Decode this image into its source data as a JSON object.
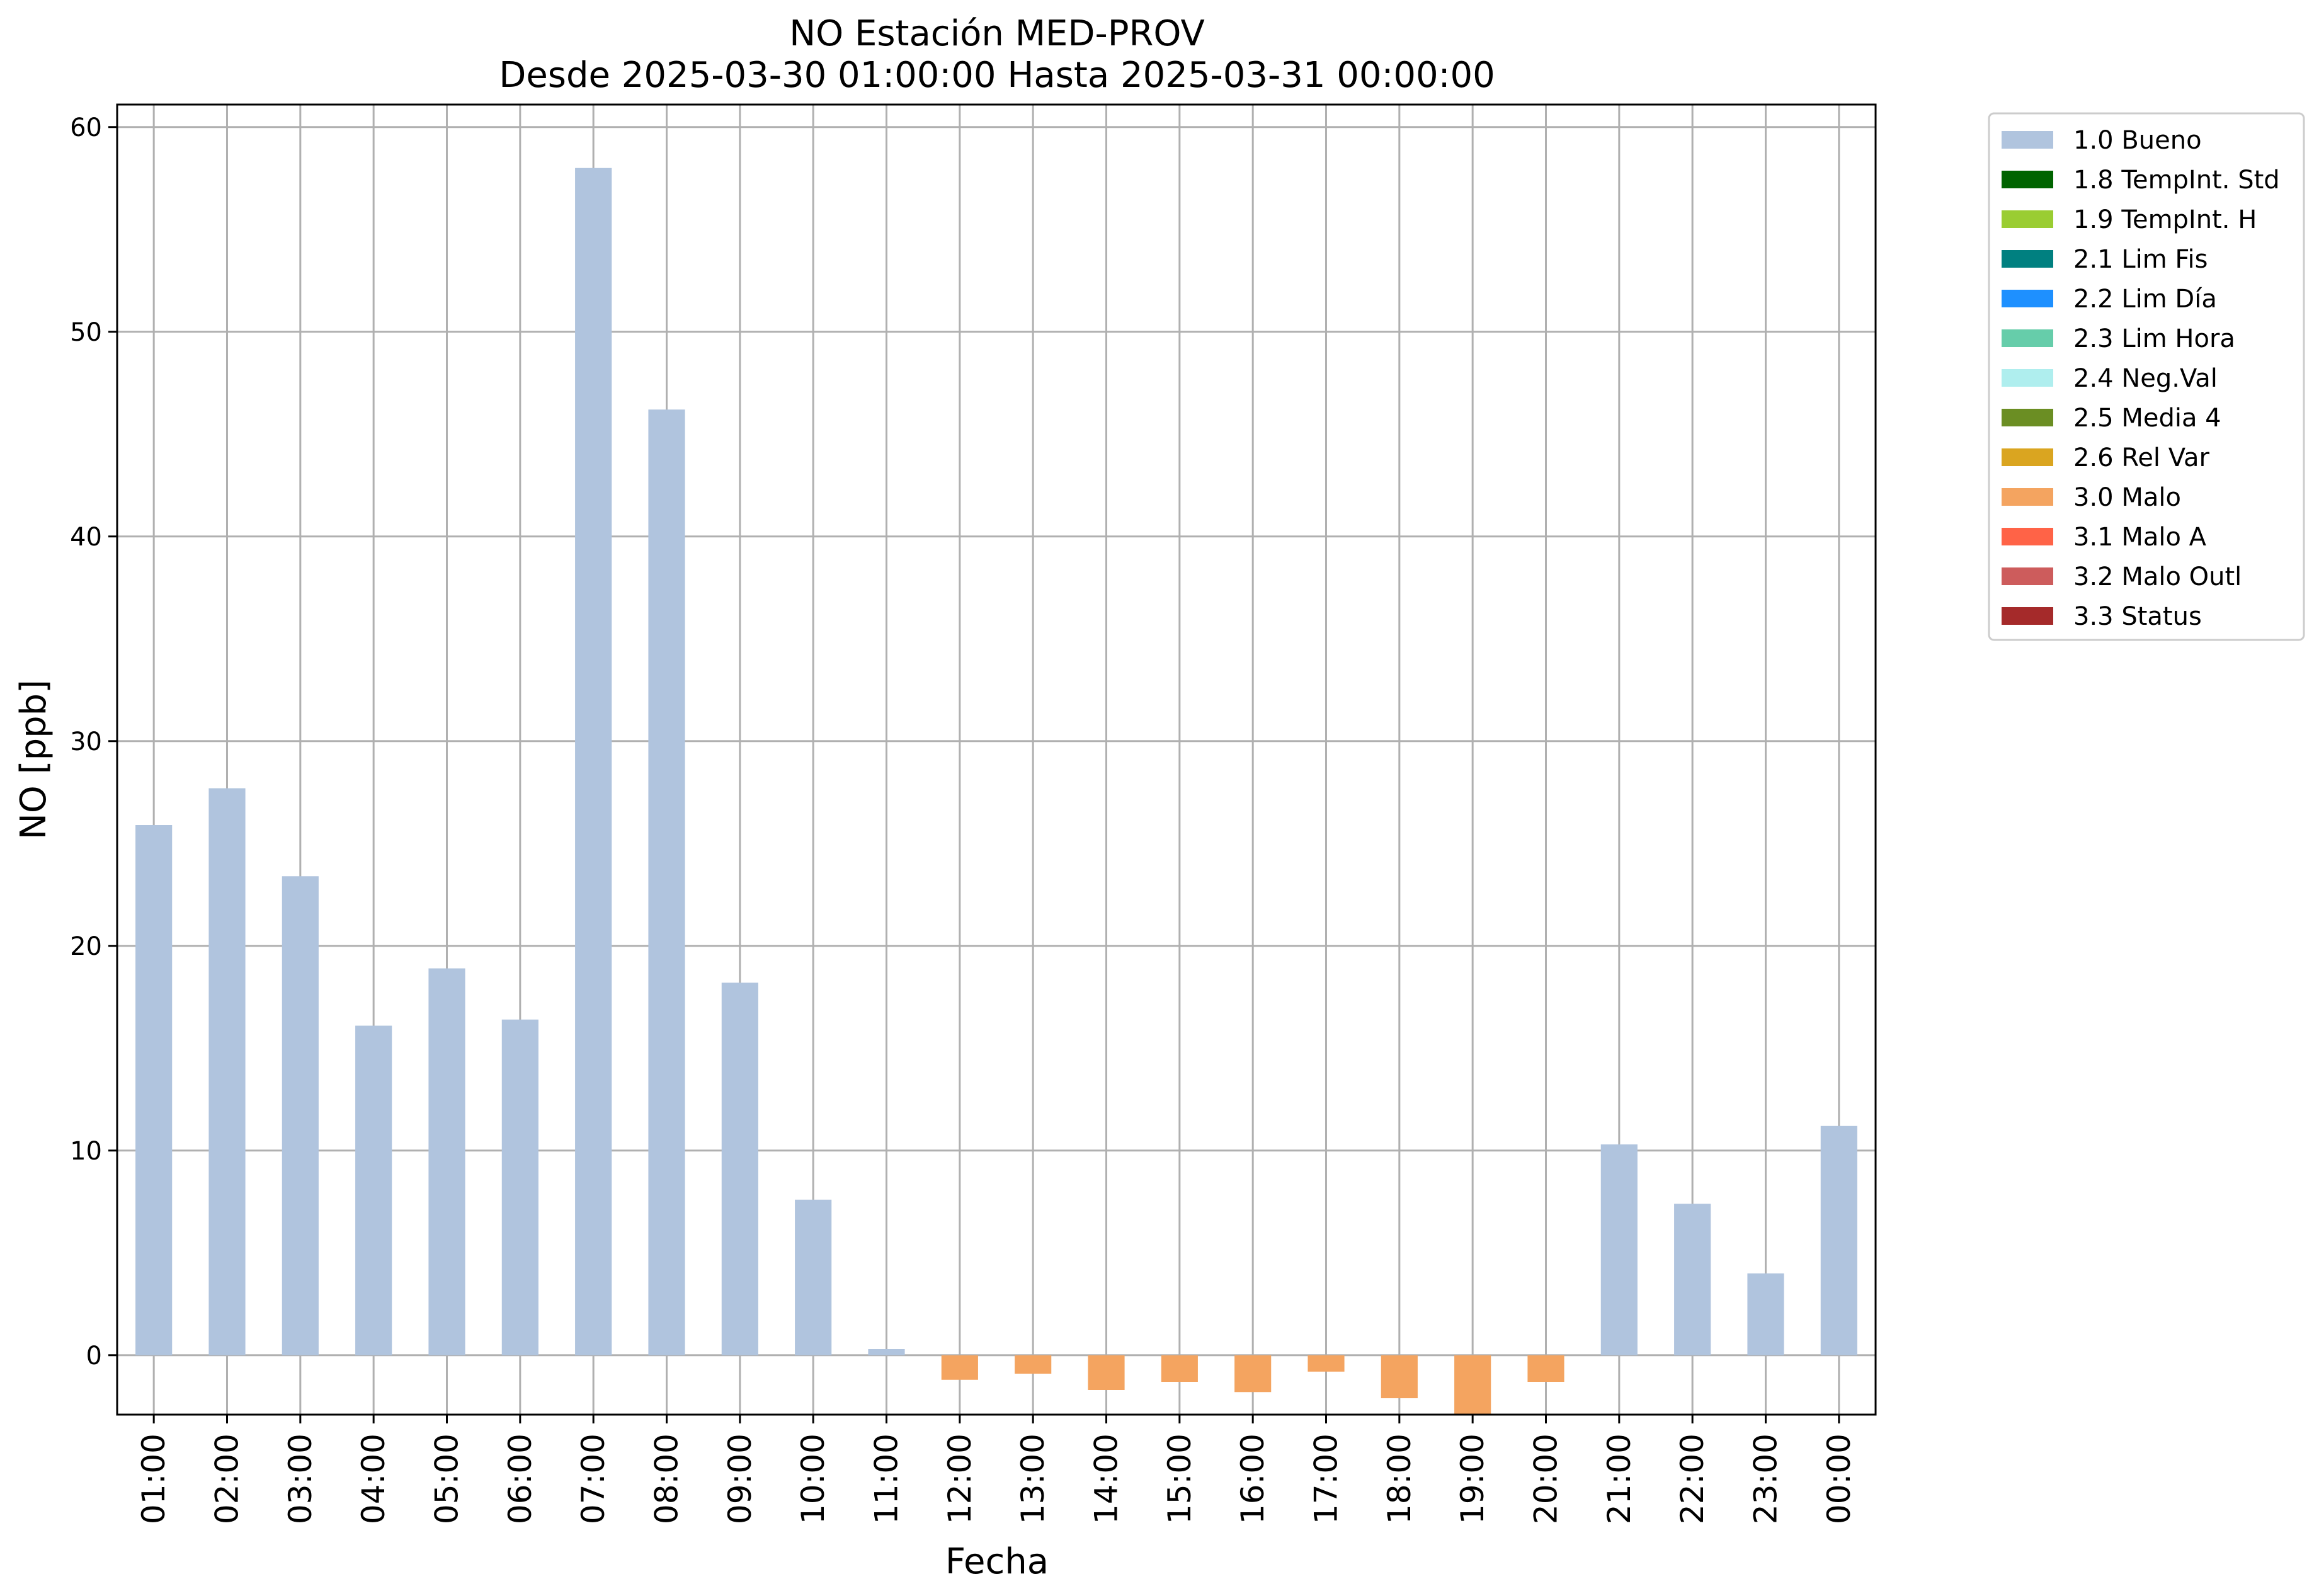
{
  "chart_data": {
    "type": "bar",
    "title_line1": "NO Estación MED-PROV",
    "title_line2": "Desde 2025-03-30 01:00:00 Hasta 2025-03-31 00:00:00",
    "xlabel": "Fecha",
    "ylabel": "NO [ppb]",
    "ylim": [
      -2.9,
      61.1
    ],
    "yticks": [
      0,
      10,
      20,
      30,
      40,
      50,
      60
    ],
    "grid": true,
    "legend_placement": "outside-top-right",
    "categories": [
      "01:00",
      "02:00",
      "03:00",
      "04:00",
      "05:00",
      "06:00",
      "07:00",
      "08:00",
      "09:00",
      "10:00",
      "11:00",
      "12:00",
      "13:00",
      "14:00",
      "15:00",
      "16:00",
      "17:00",
      "18:00",
      "19:00",
      "20:00",
      "21:00",
      "22:00",
      "23:00",
      "00:00"
    ],
    "values": [
      25.9,
      27.7,
      23.4,
      16.1,
      18.9,
      16.4,
      58.0,
      46.2,
      18.2,
      7.6,
      0.3,
      -1.2,
      -0.9,
      -1.7,
      -1.3,
      -1.8,
      -0.8,
      -2.1,
      -2.9,
      -1.3,
      10.3,
      7.4,
      4.0,
      11.2
    ],
    "flags": [
      "1.0 Bueno",
      "1.0 Bueno",
      "1.0 Bueno",
      "1.0 Bueno",
      "1.0 Bueno",
      "1.0 Bueno",
      "1.0 Bueno",
      "1.0 Bueno",
      "1.0 Bueno",
      "1.0 Bueno",
      "1.0 Bueno",
      "3.0 Malo",
      "3.0 Malo",
      "3.0 Malo",
      "3.0 Malo",
      "3.0 Malo",
      "3.0 Malo",
      "3.0 Malo",
      "3.0 Malo",
      "3.0 Malo",
      "1.0 Bueno",
      "1.0 Bueno",
      "1.0 Bueno",
      "1.0 Bueno"
    ],
    "legend": [
      {
        "name": "1.0 Bueno",
        "color": "#b0c4de"
      },
      {
        "name": "1.8 TempInt. Std",
        "color": "#006400"
      },
      {
        "name": "1.9 TempInt. H",
        "color": "#9acd32"
      },
      {
        "name": "2.1 Lim Fis",
        "color": "#008080"
      },
      {
        "name": "2.2 Lim Día",
        "color": "#1e90ff"
      },
      {
        "name": "2.3 Lim Hora",
        "color": "#66cdaa"
      },
      {
        "name": "2.4 Neg.Val",
        "color": "#afeeee"
      },
      {
        "name": "2.5 Media 4",
        "color": "#6b8e23"
      },
      {
        "name": "2.6 Rel Var",
        "color": "#daa520"
      },
      {
        "name": "3.0 Malo",
        "color": "#f4a460"
      },
      {
        "name": "3.1 Malo A",
        "color": "#ff6347"
      },
      {
        "name": "3.2 Malo Outl",
        "color": "#cd5c5c"
      },
      {
        "name": "3.3 Status",
        "color": "#a52a2a"
      }
    ]
  }
}
